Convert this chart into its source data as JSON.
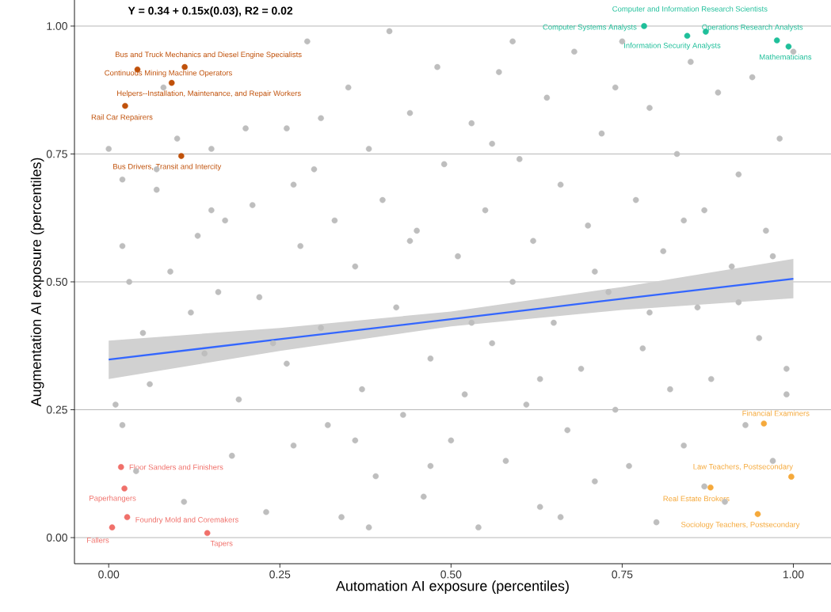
{
  "chart_data": {
    "type": "scatter",
    "title": "Y = 0.34 + 0.15x(0.03), R2 = 0.02",
    "xlabel": "Automation AI exposure (percentiles)",
    "ylabel": "Augmentation AI exposure (percentiles)",
    "xlim": [
      -0.05,
      1.055
    ],
    "ylim": [
      -0.051,
      1.051
    ],
    "xticks": [
      {
        "value": 0,
        "label": "0.00"
      },
      {
        "value": 0.25,
        "label": "0.25"
      },
      {
        "value": 0.5,
        "label": "0.50"
      },
      {
        "value": 0.75,
        "label": "0.75"
      },
      {
        "value": 1,
        "label": "1.00"
      }
    ],
    "yticks": [
      {
        "value": 0,
        "label": "0.00"
      },
      {
        "value": 0.25,
        "label": "0.25"
      },
      {
        "value": 0.5,
        "label": "0.50"
      },
      {
        "value": 0.75,
        "label": "0.75"
      },
      {
        "value": 1,
        "label": "1.00"
      }
    ],
    "grid": "y",
    "series": [
      {
        "marker": "circle",
        "color": "#bebebe",
        "x": [
          0.0,
          0.01,
          0.02,
          0.03,
          0.02,
          0.05,
          0.06,
          0.07,
          0.08,
          0.1,
          0.12,
          0.13,
          0.14,
          0.15,
          0.17,
          0.18,
          0.19,
          0.2,
          0.21,
          0.22,
          0.23,
          0.26,
          0.26,
          0.27,
          0.28,
          0.29,
          0.3,
          0.31,
          0.32,
          0.33,
          0.34,
          0.35,
          0.36,
          0.37,
          0.38,
          0.39,
          0.4,
          0.41,
          0.42,
          0.43,
          0.44,
          0.45,
          0.46,
          0.47,
          0.48,
          0.49,
          0.5,
          0.51,
          0.52,
          0.53,
          0.54,
          0.55,
          0.56,
          0.57,
          0.58,
          0.59,
          0.6,
          0.61,
          0.62,
          0.63,
          0.64,
          0.65,
          0.66,
          0.67,
          0.68,
          0.69,
          0.7,
          0.71,
          0.72,
          0.73,
          0.74,
          0.75,
          0.76,
          0.77,
          0.78,
          0.79,
          0.8,
          0.81,
          0.82,
          0.83,
          0.84,
          0.85,
          0.86,
          0.87,
          0.88,
          0.89,
          0.9,
          0.91,
          0.92,
          0.93,
          0.94,
          0.95,
          0.96,
          0.97,
          0.98,
          0.99,
          1.0,
          0.02,
          0.04,
          0.07,
          0.09,
          0.11,
          0.16,
          0.24,
          0.31,
          0.38,
          0.44,
          0.53,
          0.59,
          0.66,
          0.71,
          0.79,
          0.84,
          0.92,
          0.97,
          0.99,
          0.27,
          0.36,
          0.63,
          0.74,
          0.15,
          0.47,
          0.56,
          0.87
        ],
        "values": [
          0.76,
          0.26,
          0.57,
          0.5,
          0.22,
          0.4,
          0.3,
          0.68,
          0.88,
          0.78,
          0.44,
          0.59,
          0.36,
          0.76,
          0.62,
          0.16,
          0.27,
          0.8,
          0.65,
          0.47,
          0.05,
          0.8,
          0.34,
          0.18,
          0.57,
          0.97,
          0.72,
          0.41,
          0.22,
          0.62,
          0.04,
          0.88,
          0.53,
          0.29,
          0.76,
          0.12,
          0.66,
          0.99,
          0.45,
          0.24,
          0.83,
          0.6,
          0.08,
          0.35,
          0.92,
          0.73,
          0.19,
          0.55,
          0.28,
          0.81,
          0.02,
          0.64,
          0.38,
          0.91,
          0.15,
          0.5,
          0.74,
          0.26,
          0.58,
          0.06,
          0.86,
          0.42,
          0.69,
          0.21,
          0.95,
          0.33,
          0.61,
          0.11,
          0.79,
          0.48,
          0.25,
          0.97,
          0.14,
          0.66,
          0.37,
          0.84,
          0.03,
          0.56,
          0.29,
          0.75,
          0.18,
          0.93,
          0.45,
          0.64,
          0.31,
          0.87,
          0.07,
          0.53,
          0.71,
          0.22,
          0.9,
          0.39,
          0.6,
          0.15,
          0.78,
          0.33,
          0.95,
          0.7,
          0.13,
          0.72,
          0.52,
          0.07,
          0.48,
          0.38,
          0.82,
          0.02,
          0.58,
          0.42,
          0.97,
          0.04,
          0.52,
          0.44,
          0.62,
          0.46,
          0.55,
          0.28,
          0.69,
          0.19,
          0.31,
          0.88,
          0.64,
          0.14,
          0.77,
          0.1
        ]
      },
      {
        "type": "line",
        "marker": "none",
        "color": "#3366ff",
        "x": [
          0,
          0.25,
          0.5,
          0.75,
          1
        ],
        "values": [
          0.348,
          0.388,
          0.427,
          0.467,
          0.506
        ],
        "lower": [
          0.31,
          0.365,
          0.413,
          0.445,
          0.468
        ],
        "upper": [
          0.385,
          0.41,
          0.442,
          0.49,
          0.545
        ]
      },
      {
        "marker": "circle",
        "color": "#1fbf9a",
        "x": [
          0.872,
          0.782,
          0.845,
          0.976,
          0.993
        ],
        "values": [
          0.989,
          1.0,
          0.981,
          0.972,
          0.96
        ]
      },
      {
        "marker": "circle",
        "color": "#c0510a",
        "x": [
          0.111,
          0.042,
          0.092,
          0.024,
          0.106
        ],
        "values": [
          0.92,
          0.915,
          0.889,
          0.844,
          0.746
        ]
      },
      {
        "marker": "circle",
        "color": "#f0706a",
        "x": [
          0.018,
          0.023,
          0.027,
          0.005,
          0.144
        ],
        "values": [
          0.138,
          0.096,
          0.04,
          0.02,
          0.009
        ]
      },
      {
        "marker": "circle",
        "color": "#f5a93b",
        "x": [
          0.957,
          0.997,
          0.879,
          0.948
        ],
        "values": [
          0.223,
          0.119,
          0.098,
          0.046
        ]
      }
    ],
    "annotations": [
      {
        "text": "Computer and Information Research Scientists",
        "x": 0.872,
        "y": 0.989
      },
      {
        "text": "Computer Systems Analysts",
        "x": 0.782,
        "y": 1.0
      },
      {
        "text": "Information Security Analysts",
        "x": 0.845,
        "y": 0.981
      },
      {
        "text": "Operations Research Analysts",
        "x": 0.976,
        "y": 0.972
      },
      {
        "text": "Mathematicians",
        "x": 0.993,
        "y": 0.96
      },
      {
        "text": "Bus and Truck Mechanics and Diesel Engine Specialists",
        "x": 0.111,
        "y": 0.92
      },
      {
        "text": "Continuous Mining Machine Operators",
        "x": 0.042,
        "y": 0.915
      },
      {
        "text": "Helpers--Installation, Maintenance, and Repair Workers",
        "x": 0.092,
        "y": 0.889
      },
      {
        "text": "Rail Car Repairers",
        "x": 0.024,
        "y": 0.844
      },
      {
        "text": "Bus Drivers, Transit and Intercity",
        "x": 0.106,
        "y": 0.746
      },
      {
        "text": "Floor Sanders and Finishers",
        "x": 0.018,
        "y": 0.138
      },
      {
        "text": "Paperhangers",
        "x": 0.023,
        "y": 0.096
      },
      {
        "text": "Foundry Mold and Coremakers",
        "x": 0.027,
        "y": 0.04
      },
      {
        "text": "Fallers",
        "x": 0.005,
        "y": 0.02
      },
      {
        "text": "Tapers",
        "x": 0.144,
        "y": 0.009
      },
      {
        "text": "Financial Examiners",
        "x": 0.957,
        "y": 0.223
      },
      {
        "text": "Law Teachers, Postsecondary",
        "x": 0.997,
        "y": 0.119
      },
      {
        "text": "Real Estate Brokers",
        "x": 0.879,
        "y": 0.098
      },
      {
        "text": "Sociology Teachers, Postsecondary",
        "x": 0.948,
        "y": 0.046
      }
    ]
  }
}
